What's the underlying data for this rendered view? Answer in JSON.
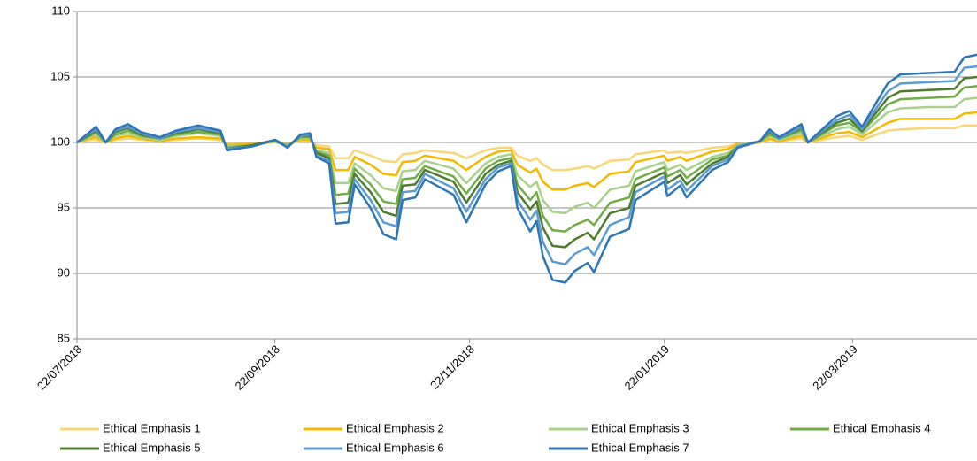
{
  "chart_data": {
    "type": "line",
    "x": [
      "22/07/2018",
      "26/07/2018",
      "28/07/2018",
      "31/07/2018",
      "03/08/2018",
      "07/08/2018",
      "11/08/2018",
      "17/08/2018",
      "22/08/2018",
      "29/08/2018",
      "05/09/2018",
      "07/09/2018",
      "15/09/2018",
      "22/09/2018",
      "26/09/2018",
      "30/09/2018",
      "03/10/2018",
      "05/10/2018",
      "09/10/2018",
      "11/10/2018",
      "15/10/2018",
      "17/10/2018",
      "22/10/2018",
      "26/10/2018",
      "30/10/2018",
      "01/11/2018",
      "05/11/2018",
      "08/11/2018",
      "17/11/2018",
      "21/11/2018",
      "27/11/2018",
      "01/12/2018",
      "05/12/2018",
      "07/12/2018",
      "11/12/2018",
      "13/12/2018",
      "15/12/2018",
      "18/12/2018",
      "22/12/2018",
      "25/12/2018",
      "29/12/2018",
      "31/12/2018",
      "05/01/2019",
      "11/01/2019",
      "13/01/2019",
      "22/01/2019",
      "23/01/2019",
      "27/01/2019",
      "29/01/2019",
      "06/02/2019",
      "11/02/2019",
      "14/02/2019",
      "21/02/2019",
      "24/02/2019",
      "27/02/2019",
      "06/03/2019",
      "08/03/2019",
      "17/03/2019",
      "21/03/2019",
      "25/03/2019",
      "02/04/2019",
      "06/04/2019",
      "15/04/2019",
      "23/04/2019",
      "26/04/2019",
      "30/04/2019"
    ],
    "series": [
      {
        "name": "Ethical Emphasis 1",
        "color": "#f9d776",
        "values": [
          100,
          100.2,
          100.2,
          100,
          100.2,
          100.3,
          100.2,
          100.1,
          100.2,
          100.3,
          100.2,
          99.9,
          99.9,
          100,
          99.9,
          100.1,
          100.1,
          99.8,
          99.7,
          98.8,
          98.8,
          99.4,
          99,
          98.6,
          98.5,
          99.1,
          99.2,
          99.4,
          99.2,
          98.8,
          99.4,
          99.6,
          99.6,
          99,
          98.6,
          98.8,
          98.3,
          97.9,
          97.9,
          98,
          98.2,
          98,
          98.6,
          98.7,
          99.1,
          99.4,
          99.2,
          99.3,
          99.2,
          99.6,
          99.7,
          99.9,
          100,
          100.2,
          100.1,
          100.3,
          100,
          100.4,
          100.5,
          100.2,
          100.9,
          101,
          101.1,
          101.1,
          101.3,
          101.3
        ]
      },
      {
        "name": "Ethical Emphasis 2",
        "color": "#f5b800",
        "values": [
          100,
          100.3,
          100.4,
          100,
          100.3,
          100.5,
          100.3,
          100.1,
          100.3,
          100.4,
          100.3,
          99.8,
          99.9,
          100.1,
          99.9,
          100.2,
          100.2,
          99.6,
          99.5,
          97.9,
          97.9,
          98.9,
          98.3,
          97.6,
          97.5,
          98.5,
          98.6,
          99,
          98.6,
          97.9,
          98.9,
          99.3,
          99.4,
          98.3,
          97.7,
          98,
          97,
          96.4,
          96.4,
          96.7,
          96.9,
          96.6,
          97.6,
          97.8,
          98.5,
          99,
          98.6,
          98.9,
          98.6,
          99.3,
          99.5,
          99.9,
          100,
          100.3,
          100.1,
          100.5,
          100,
          100.7,
          100.8,
          100.4,
          101.5,
          101.8,
          101.8,
          101.8,
          102.2,
          102.3
        ]
      },
      {
        "name": "Ethical Emphasis 3",
        "color": "#a9d18e",
        "values": [
          100,
          100.4,
          100.6,
          100,
          100.5,
          100.7,
          100.4,
          100.2,
          100.5,
          100.7,
          100.5,
          99.7,
          99.8,
          100.1,
          99.8,
          100.3,
          100.4,
          99.4,
          99.2,
          96.9,
          96.9,
          98.4,
          97.5,
          96.5,
          96.3,
          97.8,
          97.9,
          98.6,
          98,
          96.9,
          98.4,
          98.9,
          99.1,
          97.5,
          96.6,
          97,
          95.6,
          94.7,
          94.6,
          95.1,
          95.4,
          95,
          96.4,
          96.7,
          97.8,
          98.5,
          97.9,
          98.3,
          97.9,
          98.9,
          99.2,
          99.8,
          100.1,
          100.5,
          100.2,
          100.7,
          100,
          101,
          101.2,
          100.6,
          102.3,
          102.6,
          102.7,
          102.7,
          103.3,
          103.4
        ]
      },
      {
        "name": "Ethical Emphasis 4",
        "color": "#70ad47",
        "values": [
          100,
          100.5,
          100.8,
          100,
          100.6,
          100.9,
          100.5,
          100.3,
          100.6,
          100.8,
          100.6,
          99.6,
          99.8,
          100.1,
          99.7,
          100.4,
          100.4,
          99.3,
          99,
          96,
          96.1,
          98,
          96.8,
          95.5,
          95.3,
          97.2,
          97.3,
          98.2,
          97.4,
          96.1,
          98,
          98.6,
          98.8,
          96.8,
          95.6,
          96.2,
          94.4,
          93.3,
          93.2,
          93.7,
          94.1,
          93.7,
          95.4,
          95.8,
          97.2,
          98.1,
          97.4,
          97.9,
          97.3,
          98.7,
          99,
          99.7,
          100.1,
          100.6,
          100.3,
          100.9,
          100,
          101.3,
          101.5,
          100.8,
          102.9,
          103.3,
          103.4,
          103.5,
          104.2,
          104.3
        ]
      },
      {
        "name": "Ethical Emphasis 5",
        "color": "#4e7a2e",
        "values": [
          100,
          100.6,
          100.9,
          100,
          100.8,
          101.1,
          100.6,
          100.3,
          100.7,
          101,
          100.7,
          99.5,
          99.8,
          100.2,
          99.7,
          100.5,
          100.5,
          99.2,
          98.8,
          95.3,
          95.4,
          97.6,
          96.2,
          94.7,
          94.4,
          96.7,
          96.8,
          97.9,
          97,
          95.4,
          97.6,
          98.3,
          98.6,
          96.2,
          94.9,
          95.5,
          93.5,
          92.1,
          92,
          92.6,
          93.1,
          92.6,
          94.6,
          95,
          96.7,
          97.7,
          96.9,
          97.5,
          96.8,
          98.4,
          98.9,
          99.7,
          100.1,
          100.8,
          100.3,
          101.1,
          100,
          101.5,
          101.8,
          100.9,
          103.4,
          103.9,
          104,
          104.1,
          104.9,
          105
        ]
      },
      {
        "name": "Ethical Emphasis 6",
        "color": "#5b9bd5",
        "values": [
          100,
          100.7,
          101,
          100,
          100.9,
          101.2,
          100.7,
          100.3,
          100.8,
          101.1,
          100.8,
          99.5,
          99.7,
          100.2,
          99.7,
          100.5,
          100.6,
          99,
          98.6,
          94.6,
          94.7,
          97.2,
          95.6,
          93.9,
          93.6,
          96.2,
          96.3,
          97.6,
          96.5,
          94.7,
          97.2,
          98.1,
          98.4,
          95.6,
          94.1,
          94.8,
          92.4,
          90.9,
          90.7,
          91.5,
          92,
          91.4,
          93.7,
          94.3,
          96.2,
          97.4,
          96.4,
          97.1,
          96.3,
          98.2,
          98.7,
          99.7,
          100.1,
          100.9,
          100.3,
          101.2,
          100,
          101.7,
          102.1,
          101,
          103.9,
          104.5,
          104.6,
          104.7,
          105.7,
          105.8
        ]
      },
      {
        "name": "Ethical Emphasis 7",
        "color": "#2e75b6",
        "values": [
          100,
          100.8,
          101.2,
          100,
          101,
          101.4,
          100.8,
          100.4,
          100.9,
          101.3,
          100.9,
          99.4,
          99.7,
          100.2,
          99.6,
          100.6,
          100.7,
          98.9,
          98.4,
          93.8,
          93.9,
          96.8,
          95,
          93,
          92.6,
          95.6,
          95.8,
          97.2,
          96,
          93.9,
          96.8,
          97.8,
          98.2,
          95,
          93.2,
          94,
          91.3,
          89.5,
          89.3,
          90.2,
          90.8,
          90.1,
          92.8,
          93.4,
          95.6,
          97,
          95.9,
          96.7,
          95.8,
          97.9,
          98.5,
          99.6,
          100.1,
          101,
          100.4,
          101.4,
          100,
          102,
          102.4,
          101.2,
          104.5,
          105.2,
          105.3,
          105.4,
          106.5,
          106.7
        ]
      }
    ],
    "xlim": [
      "22/07/2018",
      "30/04/2019"
    ],
    "xticks": [
      "22/07/2018",
      "22/09/2018",
      "22/11/2018",
      "22/01/2019",
      "22/03/2019"
    ],
    "ylim": [
      85,
      110
    ],
    "yticks": [
      85,
      90,
      95,
      100,
      105,
      110
    ],
    "grid": true,
    "legend": "bottom"
  }
}
